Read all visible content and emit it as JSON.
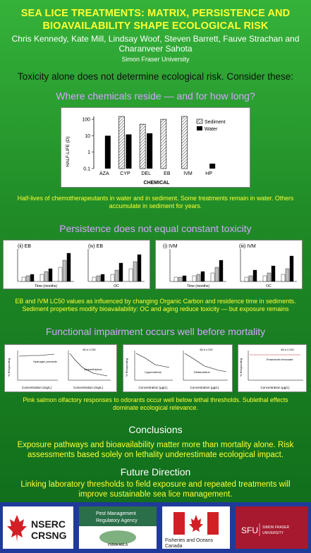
{
  "header": {
    "title": "SEA LICE TREATMENTS: MATRIX, PERSISTENCE AND BIOAVAILABILITY SHAPE ECOLOGICAL RISK",
    "authors": "Chris Kennedy, Kate Mill, Lindsay Woof, Steven Barrett, Fauve Strachan and Charanveer Sahota",
    "affiliation": "Simon Fraser University"
  },
  "intro": "Toxicity alone does not determine ecological risk. Consider these:",
  "section1": {
    "heading": "Where chemicals reside — and for how long?",
    "caption": "Half-lives of chemotherapeutants in water and in sediment. Some treatments remain in water. Others accumulate in sediment for years."
  },
  "chart_data": {
    "type": "bar",
    "categories": [
      "AZA",
      "CYP",
      "DEL",
      "EB",
      "IVM",
      "HP"
    ],
    "series": [
      {
        "name": "Sediment",
        "values": [
          null,
          150,
          50,
          100,
          150,
          null
        ]
      },
      {
        "name": "Water",
        "values": [
          10,
          12,
          14,
          null,
          null,
          0.2
        ]
      }
    ],
    "xlabel": "CHEMICAL",
    "ylabel": "HALF-LIFE (D)",
    "yscale": "log",
    "ylim": [
      0.1,
      150
    ],
    "yticks": [
      "100",
      "10",
      "1",
      "0.1"
    ],
    "legend": "top-right"
  },
  "section2": {
    "heading": "Persistence does not equal constant toxicity",
    "panels": [
      "(ii) EB",
      "(iv) EB",
      "(i) IVM",
      "(iii) IVM"
    ],
    "x_time": "Time (months)",
    "x_oc": "OC",
    "caption": "EB and IVM LC50 values as influenced by changing Organic Carbon and residence time in sediments. Sediment properties modify bioavailability: OC and aging reduce toxicity — but exposure remains"
  },
  "section3": {
    "heading": "Functional impairment occurs well before mortality",
    "panels": [
      {
        "label_a": "Hydrogen peroxide",
        "label_b": "Azamethiphos",
        "x": "Concentration (mg/L)",
        "lc": "48-h LC50"
      },
      {
        "label_a": "Cypermethrin",
        "label_b": "Deltamethrin",
        "x": "Concentration (µg/L)",
        "lc": "48-h LC50"
      },
      {
        "label_a": "Emamectin benzoate",
        "x": "Concentration (µg/L)",
        "lc": "48-h LC50"
      }
    ],
    "ylabel": "% Responding",
    "caption": "Pink salmon olfactory responses to odorants occur well below lethal thresholds. Sublethal effects dominate ecological relevance."
  },
  "conclusions": {
    "heading": "Conclusions",
    "text": "Exposure pathways and bioavailability matter more than mortality alone. Risk assessments based solely on lethality underestimate ecological impact."
  },
  "future": {
    "heading": "Future Direction",
    "text": "Linking laboratory thresholds to field exposure and repeated treatments will improve sustainable sea lice management."
  },
  "logos": {
    "nserc_1": "NSERC",
    "nserc_2": "CRSNG",
    "pmra_1": "Pest Management",
    "pmra_2": "Regulatory Agency",
    "pmra_3": "PMRA ARLA",
    "dfo_1": "Fisheries and Oceans",
    "dfo_2": "Canada",
    "sfu_1": "SFU",
    "sfu_2": "SIMON FRASER",
    "sfu_3": "UNIVERSITY"
  }
}
